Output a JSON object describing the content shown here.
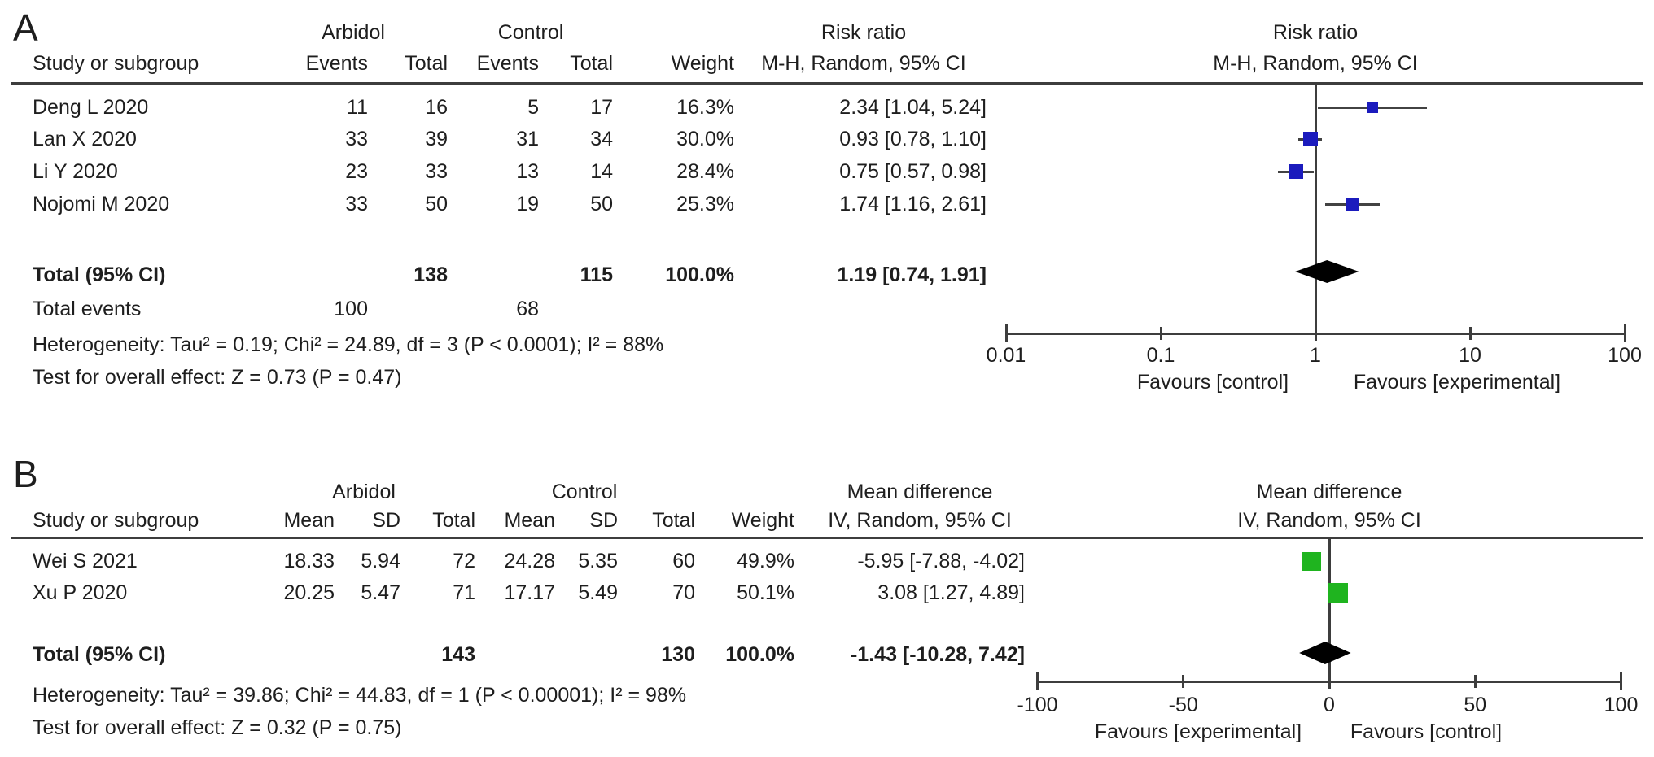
{
  "colors": {
    "panelA_marker": "#1b1bbd",
    "panelB_marker": "#1fb41f",
    "diamond": "#000000",
    "axis": "#3d3d3d",
    "ci_line": "#424242"
  },
  "panelA": {
    "label": "A",
    "group1": "Arbidol",
    "group2": "Control",
    "effect_header": "Risk ratio",
    "method_header": "M-H, Random, 95% CI",
    "col_study": "Study or subgroup",
    "col_events": "Events",
    "col_total": "Total",
    "col_weight": "Weight",
    "rows": [
      {
        "study": "Deng L 2020",
        "e1": "11",
        "t1": "16",
        "e2": "5",
        "t2": "17",
        "w": "16.3%",
        "ci": "2.34 [1.04, 5.24]"
      },
      {
        "study": "Lan X 2020",
        "e1": "33",
        "t1": "39",
        "e2": "31",
        "t2": "34",
        "w": "30.0%",
        "ci": "0.93 [0.78, 1.10]"
      },
      {
        "study": "Li Y 2020",
        "e1": "23",
        "t1": "33",
        "e2": "13",
        "t2": "14",
        "w": "28.4%",
        "ci": "0.75 [0.57, 0.98]"
      },
      {
        "study": "Nojomi M 2020",
        "e1": "33",
        "t1": "50",
        "e2": "19",
        "t2": "50",
        "w": "25.3%",
        "ci": "1.74 [1.16, 2.61]"
      }
    ],
    "total": {
      "label": "Total (95% CI)",
      "t1": "138",
      "t2": "115",
      "w": "100.0%",
      "ci": "1.19 [0.74, 1.91]"
    },
    "total_events": {
      "label": "Total events",
      "e1": "100",
      "e2": "68"
    },
    "heterogeneity": "Heterogeneity: Tau² = 0.19; Chi² = 24.89, df = 3 (P < 0.0001); I² = 88%",
    "overall": "Test for overall effect: Z = 0.73 (P = 0.47)",
    "favours_left": "Favours [control]",
    "favours_right": "Favours [experimental]"
  },
  "panelB": {
    "label": "B",
    "group1": "Arbidol",
    "group2": "Control",
    "effect_header": "Mean difference",
    "method_header": "IV, Random, 95% CI",
    "col_study": "Study or subgroup",
    "col_mean": "Mean",
    "col_sd": "SD",
    "col_total": "Total",
    "col_weight": "Weight",
    "rows": [
      {
        "study": "Wei S 2021",
        "m1": "18.33",
        "sd1": "5.94",
        "t1": "72",
        "m2": "24.28",
        "sd2": "5.35",
        "t2": "60",
        "w": "49.9%",
        "ci": "-5.95 [-7.88, -4.02]"
      },
      {
        "study": "Xu P 2020",
        "m1": "20.25",
        "sd1": "5.47",
        "t1": "71",
        "m2": "17.17",
        "sd2": "5.49",
        "t2": "70",
        "w": "50.1%",
        "ci": "3.08 [1.27, 4.89]"
      }
    ],
    "total": {
      "label": "Total (95% CI)",
      "t1": "143",
      "t2": "130",
      "w": "100.0%",
      "ci": "-1.43 [-10.28, 7.42]"
    },
    "heterogeneity": "Heterogeneity: Tau² = 39.86; Chi² = 44.83, df = 1 (P < 0.00001); I² = 98%",
    "overall": "Test for overall effect: Z = 0.32 (P = 0.75)",
    "favours_left": "Favours [experimental]",
    "favours_right": "Favours [control]"
  },
  "chart_data": [
    {
      "type": "forest",
      "title": "Risk ratio",
      "model": "M-H, Random, 95% CI",
      "x_scale": "log",
      "null_line": 1,
      "axis_ticks": [
        0.01,
        0.1,
        1,
        10,
        100
      ],
      "tick_labels": [
        "0.01",
        "0.1",
        "1",
        "10",
        "100"
      ],
      "xlim": [
        0.01,
        100
      ],
      "favours_left": "Favours [control]",
      "favours_right": "Favours [experimental]",
      "marker_color": "#1b1bbd",
      "studies": [
        {
          "name": "Deng L 2020",
          "events_exp": 11,
          "total_exp": 16,
          "events_ctrl": 5,
          "total_ctrl": 17,
          "weight_pct": 16.3,
          "estimate": 2.34,
          "ci_low": 1.04,
          "ci_high": 5.24
        },
        {
          "name": "Lan X 2020",
          "events_exp": 33,
          "total_exp": 39,
          "events_ctrl": 31,
          "total_ctrl": 34,
          "weight_pct": 30.0,
          "estimate": 0.93,
          "ci_low": 0.78,
          "ci_high": 1.1
        },
        {
          "name": "Li Y 2020",
          "events_exp": 23,
          "total_exp": 33,
          "events_ctrl": 13,
          "total_ctrl": 14,
          "weight_pct": 28.4,
          "estimate": 0.75,
          "ci_low": 0.57,
          "ci_high": 0.98
        },
        {
          "name": "Nojomi M 2020",
          "events_exp": 33,
          "total_exp": 50,
          "events_ctrl": 19,
          "total_ctrl": 50,
          "weight_pct": 25.3,
          "estimate": 1.74,
          "ci_low": 1.16,
          "ci_high": 2.61
        }
      ],
      "total": {
        "estimate": 1.19,
        "ci_low": 0.74,
        "ci_high": 1.91,
        "total_exp": 138,
        "total_ctrl": 115,
        "events_exp": 100,
        "events_ctrl": 68,
        "weight_pct": 100.0
      },
      "heterogeneity": {
        "tau2": 0.19,
        "chi2": 24.89,
        "df": 3,
        "p": "< 0.0001",
        "i2": "88%"
      },
      "overall_effect": {
        "z": 0.73,
        "p": 0.47
      }
    },
    {
      "type": "forest",
      "title": "Mean difference",
      "model": "IV, Random, 95% CI",
      "x_scale": "linear",
      "null_line": 0,
      "axis_ticks": [
        -100,
        -50,
        0,
        50,
        100
      ],
      "tick_labels": [
        "-100",
        "-50",
        "0",
        "50",
        "100"
      ],
      "xlim": [
        -100,
        100
      ],
      "favours_left": "Favours [experimental]",
      "favours_right": "Favours [control]",
      "marker_color": "#1fb41f",
      "studies": [
        {
          "name": "Wei S 2021",
          "mean_exp": 18.33,
          "sd_exp": 5.94,
          "total_exp": 72,
          "mean_ctrl": 24.28,
          "sd_ctrl": 5.35,
          "total_ctrl": 60,
          "weight_pct": 49.9,
          "estimate": -5.95,
          "ci_low": -7.88,
          "ci_high": -4.02
        },
        {
          "name": "Xu P 2020",
          "mean_exp": 20.25,
          "sd_exp": 5.47,
          "total_exp": 71,
          "mean_ctrl": 17.17,
          "sd_ctrl": 5.49,
          "total_ctrl": 70,
          "weight_pct": 50.1,
          "estimate": 3.08,
          "ci_low": 1.27,
          "ci_high": 4.89
        }
      ],
      "total": {
        "estimate": -1.43,
        "ci_low": -10.28,
        "ci_high": 7.42,
        "total_exp": 143,
        "total_ctrl": 130,
        "weight_pct": 100.0
      },
      "heterogeneity": {
        "tau2": 39.86,
        "chi2": 44.83,
        "df": 1,
        "p": "< 0.00001",
        "i2": "98%"
      },
      "overall_effect": {
        "z": 0.32,
        "p": 0.75
      }
    }
  ]
}
